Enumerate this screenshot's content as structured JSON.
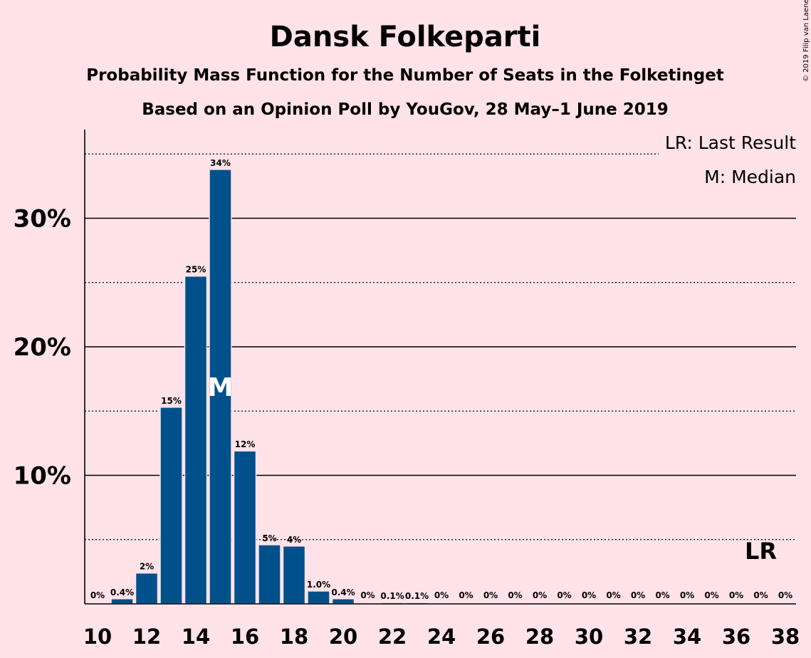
{
  "title": "Dansk Folkeparti",
  "subtitle1": "Probability Mass Function for the Number of Seats in the Folketinget",
  "subtitle2": "Based on an Opinion Poll by YouGov, 28 May–1 June 2019",
  "copyright": "© 2019 Filip van Laenen",
  "legend": {
    "last_result": "LR: Last Result",
    "median": "M: Median"
  },
  "colors": {
    "bar": "#00508c",
    "background": "#ffe3e8"
  },
  "chart_data": {
    "type": "bar",
    "x": [
      10,
      11,
      12,
      13,
      14,
      15,
      16,
      17,
      18,
      19,
      20,
      21,
      22,
      23,
      24,
      25,
      26,
      27,
      28,
      29,
      30,
      31,
      32,
      33,
      34,
      35,
      36,
      37,
      38
    ],
    "values": [
      0,
      0.4,
      2.4,
      15.3,
      25.5,
      33.8,
      11.9,
      4.6,
      4.5,
      1.0,
      0.4,
      0,
      0.1,
      0.1,
      0,
      0,
      0,
      0,
      0,
      0,
      0,
      0,
      0,
      0,
      0,
      0,
      0,
      0,
      0
    ],
    "data_labels": [
      "0%",
      "0.4%",
      "2%",
      "15%",
      "25%",
      "34%",
      "12%",
      "5%",
      "4%",
      "1.0%",
      "0.4%",
      "0%",
      "0.1%",
      "0.1%",
      "0%",
      "0%",
      "0%",
      "0%",
      "0%",
      "0%",
      "0%",
      "0%",
      "0%",
      "0%",
      "0%",
      "0%",
      "0%",
      "0%",
      "0%"
    ],
    "xticks": [
      10,
      12,
      14,
      16,
      18,
      20,
      22,
      24,
      26,
      28,
      30,
      32,
      34,
      36,
      38
    ],
    "yticks": [
      10,
      20,
      30
    ],
    "ytick_labels": [
      "10%",
      "20%",
      "30%"
    ],
    "ylim": [
      0,
      37
    ],
    "median_seat": 15,
    "median_label": "M",
    "last_result_seat": 37,
    "last_result_label": "LR",
    "grid": "solid lines at 10% steps, dotted lines at 5% steps",
    "legend_position": "top-right"
  }
}
